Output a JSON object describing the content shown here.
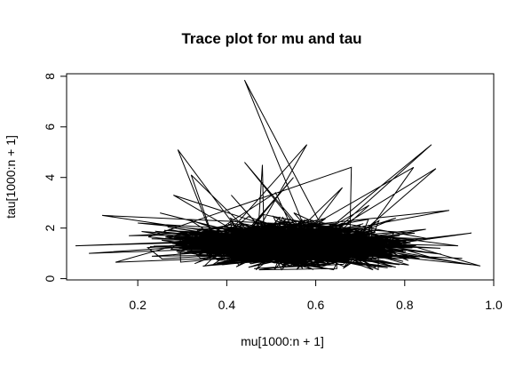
{
  "chart_data": {
    "type": "line",
    "title": "Trace plot for mu and tau",
    "xlabel": "mu[1000:n + 1]",
    "ylabel": "tau[1000:n + 1]",
    "xlim": [
      0.04,
      1.0
    ],
    "ylim": [
      -0.05,
      8.1
    ],
    "xticks": [
      "0.2",
      "0.4",
      "0.6",
      "0.8",
      "1.0"
    ],
    "yticks": [
      "0",
      "2",
      "4",
      "6",
      "8"
    ],
    "grid": false,
    "legend": "none",
    "series": [
      {
        "color": "#000000",
        "points": [
          [
            0.06,
            1.3
          ],
          [
            0.95,
            0.55
          ],
          [
            0.12,
            2.5
          ],
          [
            0.78,
            0.45
          ],
          [
            0.44,
            7.85
          ],
          [
            0.3,
            1.5
          ],
          [
            0.86,
            5.3
          ],
          [
            0.32,
            4.1
          ],
          [
            0.82,
            4.4
          ],
          [
            0.29,
            5.1
          ],
          [
            0.48,
            4.5
          ],
          [
            0.58,
            5.3
          ],
          [
            0.68,
            4.4
          ],
          [
            0.51,
            3.4
          ],
          [
            0.87,
            4.35
          ],
          [
            0.62,
            0.4
          ],
          [
            0.15,
            0.65
          ],
          [
            0.9,
            2.7
          ],
          [
            0.41,
            3.3
          ],
          [
            0.2,
            2.2
          ],
          [
            0.55,
            4.0
          ],
          [
            0.95,
            1.8
          ],
          [
            0.09,
            1.0
          ],
          [
            0.72,
            2.9
          ],
          [
            0.35,
            0.5
          ],
          [
            0.97,
            0.5
          ],
          [
            0.25,
            2.6
          ],
          [
            0.66,
            3.6
          ],
          [
            0.18,
            1.7
          ],
          [
            0.88,
            1.2
          ],
          [
            0.44,
            4.6
          ],
          [
            0.6,
            0.45
          ],
          [
            0.78,
            2.4
          ],
          [
            0.28,
            3.3
          ],
          [
            0.92,
            1.3
          ]
        ]
      }
    ]
  }
}
